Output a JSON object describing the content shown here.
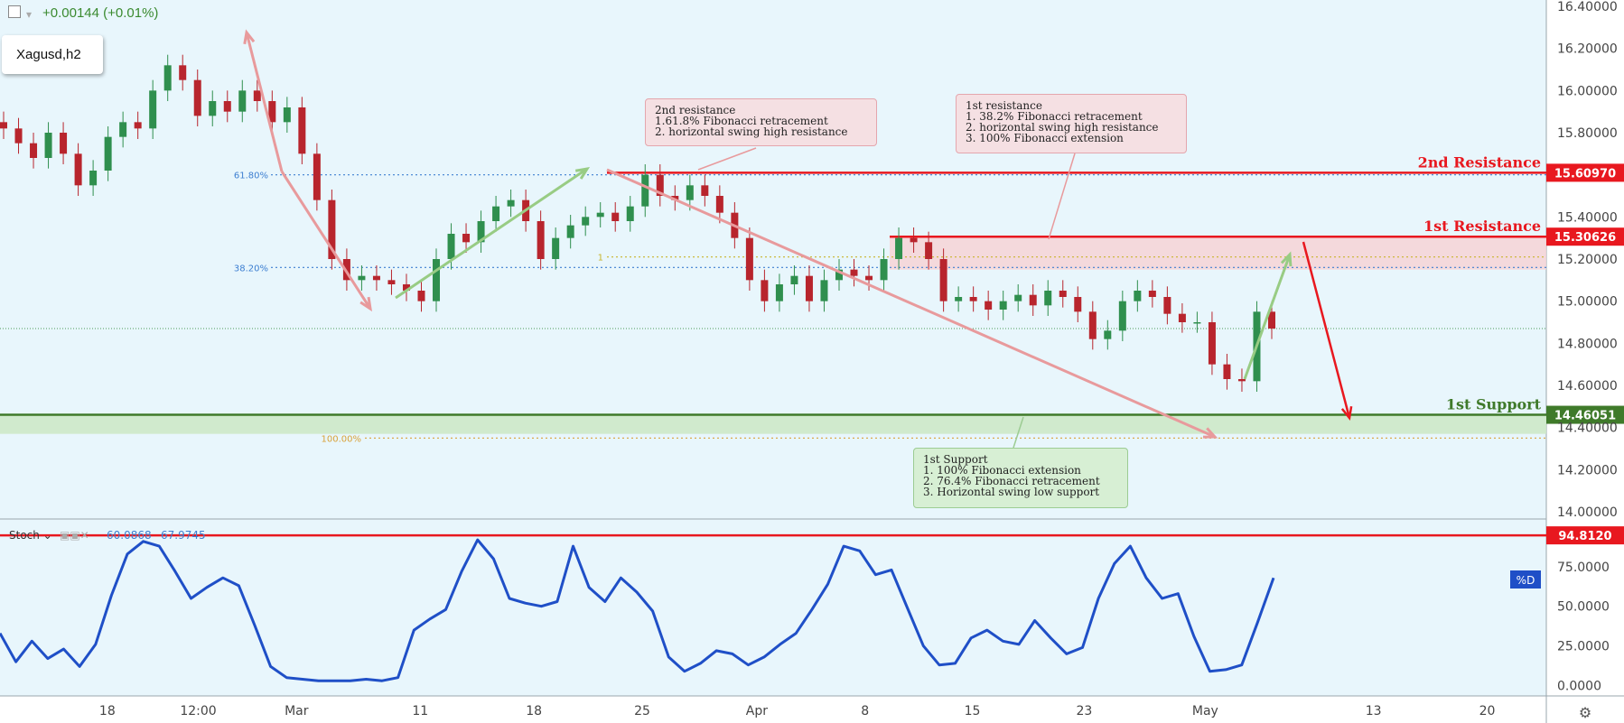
{
  "header": {
    "change_text": "+0.00144 (+0.01%)",
    "symbol_label": "Xagusd,h2"
  },
  "chart_data": [
    {
      "type": "line",
      "series": [
        {
          "values": [
            15.82,
            15.75,
            15.68,
            15.8,
            15.7,
            15.55,
            15.62,
            15.78,
            15.85,
            15.82,
            16.0,
            16.12,
            16.05,
            15.88,
            15.95,
            15.9,
            16.0,
            15.95,
            15.85,
            15.92,
            15.7,
            15.48,
            15.2,
            15.1,
            15.12,
            15.1,
            15.08,
            15.05,
            15.0,
            15.2,
            15.32,
            15.28,
            15.38,
            15.45,
            15.48,
            15.38,
            15.2,
            15.3,
            15.36,
            15.4,
            15.42,
            15.38,
            15.45,
            15.6,
            15.5,
            15.48,
            15.55,
            15.5,
            15.42,
            15.3,
            15.1,
            15.0,
            15.08,
            15.12,
            15.0,
            15.1,
            15.15,
            15.12,
            15.1,
            15.2,
            15.3,
            15.28,
            15.2,
            15.0,
            15.02,
            15.0,
            14.96,
            15.0,
            15.03,
            14.98,
            15.05,
            15.02,
            14.95,
            14.82,
            14.86,
            15.0,
            15.05,
            15.02,
            14.94,
            14.9,
            14.9,
            14.7,
            14.63,
            14.62,
            14.95,
            14.87
          ]
        }
      ],
      "annotations": {
        "fib_618_label": "61.80%",
        "fib_382_label": "38.20%",
        "fib_100_label": "100.00%",
        "fib_1_label": "1",
        "fib_618_value": 15.6,
        "fib_382_value": 15.16,
        "fib_1_value": 15.21,
        "fib_100_value": 14.35,
        "current_price_line": 14.87
      },
      "levels": [
        {
          "label": "2nd Resistance",
          "value": 15.6097,
          "value_label": "15.60970",
          "color": "#e8181f"
        },
        {
          "label": "1st Resistance",
          "value": 15.30626,
          "value_label": "15.30626",
          "color": "#e8181f"
        },
        {
          "label": "1st Support",
          "value": 14.46051,
          "value_label": "14.46051",
          "color": "#3f7a2a"
        }
      ],
      "resistance_zone": [
        15.15,
        15.31
      ],
      "support_zone": [
        14.37,
        14.46
      ],
      "ylim": [
        13.97,
        16.43
      ],
      "y_ticks": [
        "16.40000",
        "16.20000",
        "16.00000",
        "15.80000",
        "15.40000",
        "15.20000",
        "15.00000",
        "14.80000",
        "14.60000",
        "14.40000",
        "14.20000",
        "14.00000"
      ],
      "y_tick_values": [
        16.4,
        16.2,
        16.0,
        15.8,
        15.4,
        15.2,
        15.0,
        14.8,
        14.6,
        14.4,
        14.2,
        14.0
      ],
      "x_ticks": [
        "18",
        "12:00",
        "Mar",
        "11",
        "18",
        "25",
        "Apr",
        "8",
        "15",
        "23",
        "May",
        "13",
        "20"
      ],
      "x_tick_values": [
        11.8,
        21.8,
        32.6,
        46.2,
        58.7,
        70.6,
        83.2,
        95.1,
        106.9,
        119.2,
        132.5,
        151.0,
        163.5
      ],
      "xlim": [
        0,
        170
      ],
      "colors": {
        "up": "#2f8f4e",
        "down": "#b8252d",
        "background": "#e8f6fc"
      }
    },
    {
      "type": "line",
      "title": "Stoch",
      "readouts": [
        "60.0868",
        "67.9745"
      ],
      "series": [
        {
          "name": "%D",
          "color": "#1f4fc7",
          "values": [
            33.0,
            15.0,
            28.0,
            17.0,
            23.0,
            12.0,
            26.0,
            57.0,
            83.0,
            91.0,
            88.0,
            72.0,
            55.0,
            62.0,
            68.0,
            63.0,
            38.0,
            12.0,
            5.0,
            4.0,
            3.0,
            3.0,
            3.0,
            4.0,
            3.0,
            5.0,
            35.0,
            42.0,
            48.0,
            72.0,
            92.0,
            80.0,
            55.0,
            52.0,
            50.0,
            53.0,
            88.0,
            62.0,
            53.0,
            68.0,
            59.0,
            47.0,
            18.0,
            9.0,
            14.0,
            22.0,
            20.0,
            13.0,
            18.0,
            26.0,
            33.0,
            48.0,
            64.0,
            88.0,
            85.0,
            70.0,
            73.0,
            49.0,
            25.0,
            13.0,
            14.0,
            30.0,
            35.0,
            28.0,
            26.0,
            41.0,
            30.0,
            20.0,
            24.0,
            55.0,
            77.0,
            88.0,
            68.0,
            55.0,
            58.0,
            31.0,
            9.0,
            10.0,
            13.0,
            40.0,
            68.0
          ]
        }
      ],
      "levels": [
        {
          "value": 94.812,
          "value_label": "94.8120",
          "color": "#e8181f"
        }
      ],
      "ylim": [
        -6,
        104
      ],
      "y_ticks": [
        "75.0000",
        "50.0000",
        "25.0000",
        "0.0000"
      ],
      "y_tick_values": [
        75,
        50,
        25,
        0
      ],
      "legend_label": "%D"
    }
  ],
  "notes": [
    {
      "kind": "red",
      "text": "2nd resistance\n1.61.8% Fibonacci retracement\n2. horizontal swing high resistance"
    },
    {
      "kind": "red",
      "text": "1st resistance\n1. 38.2% Fibonacci retracement\n2. horizontal swing high resistance\n3. 100% Fibonacci extension"
    },
    {
      "kind": "green",
      "text": "1st Support\n1. 100% Fibonacci extension\n2. 76.4% Fibonacci retracement\n3. Horizontal swing low support"
    }
  ]
}
